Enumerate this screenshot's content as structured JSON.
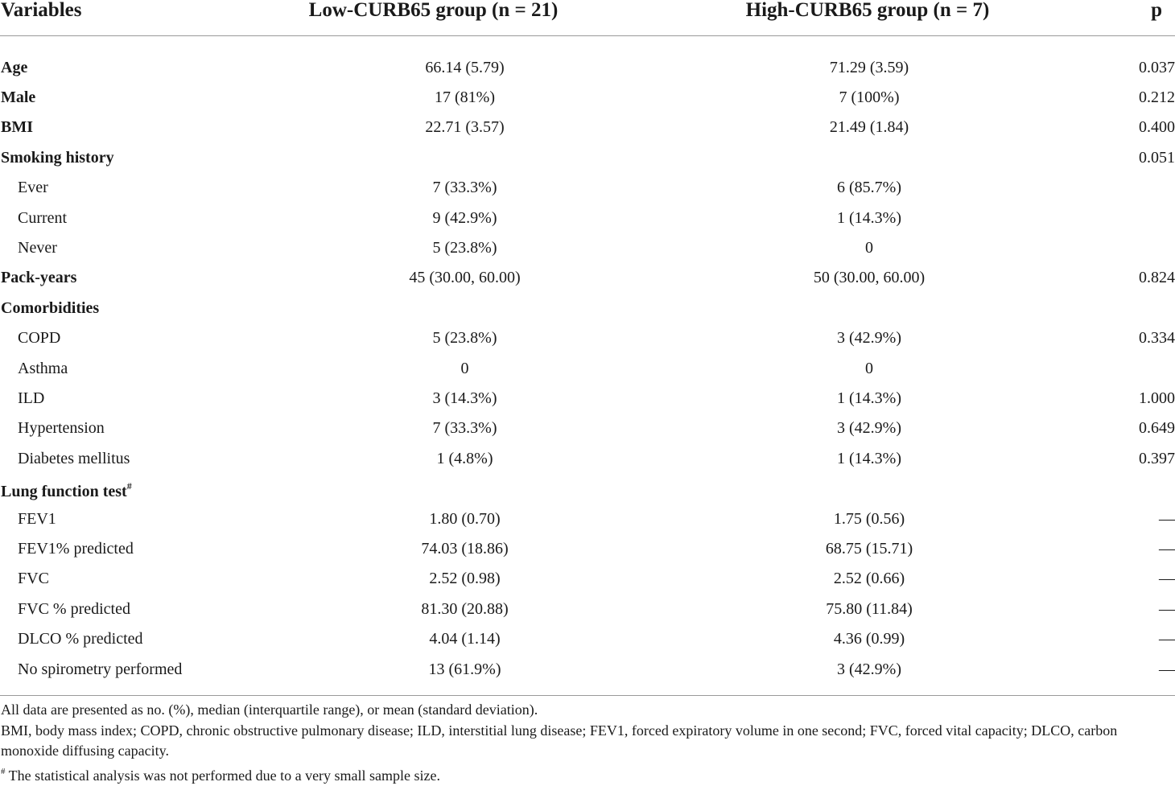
{
  "table": {
    "headers": {
      "variables": "Variables",
      "low": "Low-CURB65 group (n = 21)",
      "high": "High-CURB65 group (n = 7)",
      "p": "p"
    },
    "rows": [
      {
        "label": "Age",
        "low": "66.14 (5.79)",
        "high": "71.29 (3.59)",
        "p": "0.037"
      },
      {
        "label": "Male",
        "low": "17 (81%)",
        "high": "7 (100%)",
        "p": "0.212"
      },
      {
        "label": "BMI",
        "low": "22.71 (3.57)",
        "high": "21.49 (1.84)",
        "p": "0.400"
      },
      {
        "label": "Smoking history",
        "low": "",
        "high": "",
        "p": "0.051"
      },
      {
        "label": "Ever",
        "low": "7 (33.3%)",
        "high": "6 (85.7%)",
        "p": ""
      },
      {
        "label": "Current",
        "low": "9 (42.9%)",
        "high": "1 (14.3%)",
        "p": ""
      },
      {
        "label": "Never",
        "low": "5 (23.8%)",
        "high": "0",
        "p": ""
      },
      {
        "label": "Pack-years",
        "low": "45 (30.00, 60.00)",
        "high": "50 (30.00, 60.00)",
        "p": "0.824"
      },
      {
        "label": "Comorbidities",
        "low": "",
        "high": "",
        "p": ""
      },
      {
        "label": "COPD",
        "low": "5 (23.8%)",
        "high": "3 (42.9%)",
        "p": "0.334"
      },
      {
        "label": "Asthma",
        "low": "0",
        "high": "0",
        "p": ""
      },
      {
        "label": "ILD",
        "low": "3 (14.3%)",
        "high": "1 (14.3%)",
        "p": "1.000"
      },
      {
        "label": "Hypertension",
        "low": "7 (33.3%)",
        "high": "3 (42.9%)",
        "p": "0.649"
      },
      {
        "label": "Diabetes mellitus",
        "low": "1 (4.8%)",
        "high": "1 (14.3%)",
        "p": "0.397"
      },
      {
        "label": "Lung function test",
        "low": "",
        "high": "",
        "p": ""
      },
      {
        "label": "FEV1",
        "low": "1.80 (0.70)",
        "high": "1.75 (0.56)",
        "p": "—"
      },
      {
        "label": "FEV1% predicted",
        "low": "74.03 (18.86)",
        "high": "68.75 (15.71)",
        "p": "—"
      },
      {
        "label": "FVC",
        "low": "2.52 (0.98)",
        "high": "2.52 (0.66)",
        "p": "—"
      },
      {
        "label": "FVC % predicted",
        "low": "81.30 (20.88)",
        "high": "75.80 (11.84)",
        "p": "—"
      },
      {
        "label": "DLCO % predicted",
        "low": "4.04 (1.14)",
        "high": "4.36 (0.99)",
        "p": "—"
      },
      {
        "label": "No spirometry performed",
        "low": "13 (61.9%)",
        "high": "3 (42.9%)",
        "p": "—"
      }
    ],
    "footnote_mark": "#"
  },
  "notes": {
    "line1": "All data are presented as no. (%), median (interquartile range), or mean (standard deviation).",
    "line2": "BMI, body mass index; COPD, chronic obstructive pulmonary disease; ILD, interstitial lung disease; FEV1, forced expiratory volume in one second; FVC, forced vital capacity; DLCO, carbon monoxide diffusing capacity.",
    "line3_mark": "#",
    "line3": " The statistical analysis was not performed due to a very small sample size."
  }
}
